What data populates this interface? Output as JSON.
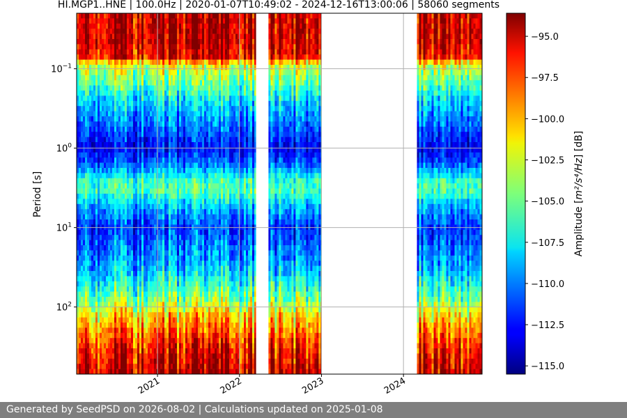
{
  "chart_data": {
    "type": "heatmap",
    "title": "HI.MGP1..HNE | 100.0Hz | 2020-01-07T10:49:02 - 2024-12-16T13:00:06 | 58060 segments",
    "ylabel": "Period [s]",
    "y_scale": "log",
    "y_inverted": true,
    "ylim": [
      0.02,
      700
    ],
    "y_ticks": [
      {
        "value": 0.1,
        "base": "10",
        "exp": "−1"
      },
      {
        "value": 1,
        "base": "10",
        "exp": "0"
      },
      {
        "value": 10,
        "base": "10",
        "exp": "1"
      },
      {
        "value": 100,
        "base": "10",
        "exp": "2"
      }
    ],
    "x_type": "date",
    "xlim": [
      "2020-01-07",
      "2024-12-16"
    ],
    "x_ticks": [
      {
        "date": "2021-01-01",
        "label": "2021"
      },
      {
        "date": "2022-01-01",
        "label": "2022"
      },
      {
        "date": "2023-01-01",
        "label": "2023"
      },
      {
        "date": "2024-01-01",
        "label": "2024"
      }
    ],
    "data_segments": [
      {
        "start": "2020-01-07",
        "end": "2022-03-15"
      },
      {
        "start": "2022-05-10",
        "end": "2023-01-01"
      },
      {
        "start": "2024-03-01",
        "end": "2024-12-16"
      }
    ],
    "grid": true,
    "colorbar": {
      "label_prefix": "Amplitude [",
      "label_units": "m²/s⁴/Hz",
      "label_suffix": "] [dB]",
      "colormap": "jet",
      "min": -115.5,
      "max": -93.6,
      "ticks": [
        "−95.0",
        "−97.5",
        "−100.0",
        "−102.5",
        "−105.0",
        "−107.5",
        "−110.0",
        "−112.5",
        "−115.0"
      ],
      "tick_values": [
        -95,
        -97.5,
        -100,
        -102.5,
        -105,
        -107.5,
        -110,
        -112.5,
        -115
      ]
    }
  },
  "footer": {
    "text": "Generated by SeedPSD on 2026-08-02 | Calculations updated on 2025-01-08"
  }
}
